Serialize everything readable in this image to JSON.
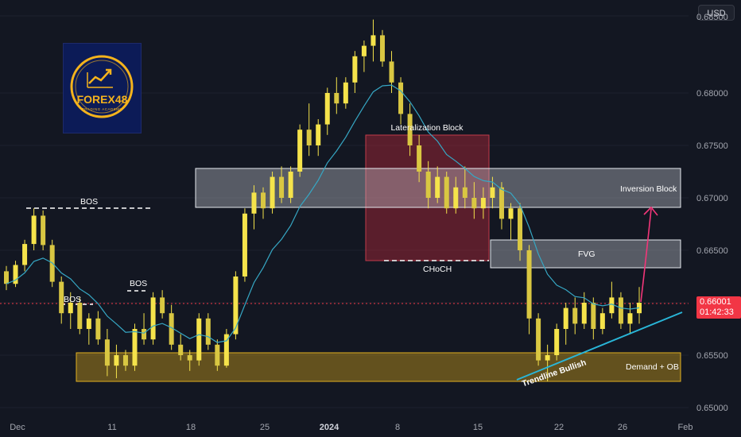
{
  "currency": "USD",
  "logo": {
    "title": "FOREX48",
    "subtitle": "TRADING ACADEMY"
  },
  "last_price": "0.66001",
  "countdown": "01:42:33",
  "colors": {
    "up": "#f5e34b",
    "down": "#f5e34b",
    "ma": "#36a7c4",
    "lateralization_block": "#b2283a",
    "grey_zone": "#d8dbe3",
    "demand_zone": "#c59a1a",
    "trendline": "#29b6d8",
    "projection": "#f23679"
  },
  "price_scale": {
    "labels": [
      "0.68500",
      "0.68000",
      "0.67500",
      "0.67000",
      "0.66500",
      "0.66000",
      "0.65500",
      "0.65000"
    ]
  },
  "date_axis": {
    "labels": [
      "Dec",
      "11",
      "18",
      "25",
      "2024",
      "8",
      "15",
      "22",
      "26",
      "Feb"
    ]
  },
  "annotations": {
    "bos1": "BOS",
    "bos2": "BOS",
    "bos3": "BOS",
    "lateralization": "Lateralization Block",
    "inversion": "Inversion Block",
    "fvg": "FVG",
    "choch": "CHoCH",
    "demand": "Demand + OB",
    "trendline": "Trendline Bullish"
  },
  "chart_data": {
    "type": "candlestick",
    "instrument_quote": "USD",
    "ylim": [
      0.65,
      0.687
    ],
    "candles_ohlc": [
      [
        0.663,
        0.6635,
        0.6612,
        0.6618
      ],
      [
        0.6618,
        0.664,
        0.6615,
        0.6636
      ],
      [
        0.6636,
        0.666,
        0.663,
        0.6656
      ],
      [
        0.6656,
        0.669,
        0.665,
        0.6683
      ],
      [
        0.6683,
        0.6688,
        0.665,
        0.6655
      ],
      [
        0.6655,
        0.666,
        0.6615,
        0.662
      ],
      [
        0.662,
        0.6625,
        0.658,
        0.659
      ],
      [
        0.659,
        0.661,
        0.6575,
        0.66
      ],
      [
        0.66,
        0.6605,
        0.657,
        0.6575
      ],
      [
        0.6575,
        0.659,
        0.656,
        0.6585
      ],
      [
        0.6585,
        0.6592,
        0.656,
        0.6565
      ],
      [
        0.6565,
        0.6575,
        0.653,
        0.654
      ],
      [
        0.654,
        0.656,
        0.6528,
        0.655
      ],
      [
        0.655,
        0.6555,
        0.6535,
        0.654
      ],
      [
        0.654,
        0.658,
        0.6535,
        0.6575
      ],
      [
        0.6575,
        0.659,
        0.656,
        0.6565
      ],
      [
        0.6565,
        0.661,
        0.656,
        0.6605
      ],
      [
        0.6605,
        0.6612,
        0.6585,
        0.659
      ],
      [
        0.659,
        0.6598,
        0.6555,
        0.656
      ],
      [
        0.656,
        0.657,
        0.6545,
        0.655
      ],
      [
        0.655,
        0.6555,
        0.6535,
        0.6545
      ],
      [
        0.6545,
        0.659,
        0.654,
        0.6585
      ],
      [
        0.6585,
        0.659,
        0.6555,
        0.656
      ],
      [
        0.656,
        0.6565,
        0.6535,
        0.654
      ],
      [
        0.654,
        0.6575,
        0.6538,
        0.657
      ],
      [
        0.657,
        0.663,
        0.6565,
        0.6625
      ],
      [
        0.6625,
        0.669,
        0.662,
        0.6685
      ],
      [
        0.6685,
        0.6712,
        0.667,
        0.6705
      ],
      [
        0.6705,
        0.671,
        0.668,
        0.669
      ],
      [
        0.669,
        0.6725,
        0.6685,
        0.672
      ],
      [
        0.672,
        0.673,
        0.6695,
        0.67
      ],
      [
        0.67,
        0.673,
        0.6695,
        0.6725
      ],
      [
        0.6725,
        0.677,
        0.672,
        0.6765
      ],
      [
        0.6765,
        0.679,
        0.674,
        0.675
      ],
      [
        0.675,
        0.6775,
        0.674,
        0.677
      ],
      [
        0.677,
        0.6805,
        0.676,
        0.68
      ],
      [
        0.68,
        0.6815,
        0.678,
        0.679
      ],
      [
        0.679,
        0.6815,
        0.6785,
        0.681
      ],
      [
        0.681,
        0.684,
        0.68,
        0.6835
      ],
      [
        0.6835,
        0.685,
        0.682,
        0.6845
      ],
      [
        0.6845,
        0.687,
        0.683,
        0.6855
      ],
      [
        0.6855,
        0.686,
        0.6825,
        0.683
      ],
      [
        0.683,
        0.684,
        0.68,
        0.681
      ],
      [
        0.681,
        0.6815,
        0.677,
        0.678
      ],
      [
        0.678,
        0.679,
        0.674,
        0.675
      ],
      [
        0.675,
        0.676,
        0.6715,
        0.6725
      ],
      [
        0.6725,
        0.6735,
        0.669,
        0.67
      ],
      [
        0.67,
        0.673,
        0.6695,
        0.672
      ],
      [
        0.672,
        0.6725,
        0.6685,
        0.669
      ],
      [
        0.669,
        0.672,
        0.6685,
        0.671
      ],
      [
        0.671,
        0.673,
        0.669,
        0.67
      ],
      [
        0.67,
        0.6715,
        0.668,
        0.669
      ],
      [
        0.669,
        0.671,
        0.668,
        0.67
      ],
      [
        0.67,
        0.672,
        0.669,
        0.671
      ],
      [
        0.671,
        0.6715,
        0.667,
        0.668
      ],
      [
        0.668,
        0.6695,
        0.666,
        0.669
      ],
      [
        0.669,
        0.6695,
        0.664,
        0.665
      ],
      [
        0.665,
        0.6655,
        0.657,
        0.6585
      ],
      [
        0.6585,
        0.659,
        0.654,
        0.6545
      ],
      [
        0.6545,
        0.656,
        0.6525,
        0.655
      ],
      [
        0.655,
        0.658,
        0.6545,
        0.6575
      ],
      [
        0.6575,
        0.66,
        0.656,
        0.6595
      ],
      [
        0.6595,
        0.6605,
        0.657,
        0.658
      ],
      [
        0.658,
        0.661,
        0.6575,
        0.66
      ],
      [
        0.66,
        0.6605,
        0.6565,
        0.6575
      ],
      [
        0.6575,
        0.6595,
        0.657,
        0.659
      ],
      [
        0.659,
        0.662,
        0.6585,
        0.6605
      ],
      [
        0.6605,
        0.661,
        0.6575,
        0.658
      ],
      [
        0.658,
        0.66,
        0.657,
        0.659
      ],
      [
        0.659,
        0.6615,
        0.658,
        0.66
      ]
    ],
    "moving_average": "single line following price",
    "zones": [
      {
        "name": "Lateralization Block",
        "from": 0.6641,
        "to": 0.6761
      },
      {
        "name": "Inversion Block",
        "from": 0.6691,
        "to": 0.6727
      },
      {
        "name": "FVG",
        "from": 0.6637,
        "to": 0.666
      },
      {
        "name": "Demand + OB",
        "from": 0.6527,
        "to": 0.6554
      }
    ],
    "levels": [
      {
        "name": "BOS",
        "price": 0.6691
      },
      {
        "name": "BOS",
        "price": 0.6608
      },
      {
        "name": "BOS",
        "price": 0.6626
      },
      {
        "name": "CHoCH",
        "price": 0.6641
      },
      {
        "name": "last price",
        "price": 0.66001
      }
    ],
    "trendline": {
      "name": "Trendline Bullish",
      "from": 0.6528,
      "to": 0.6596
    },
    "projection": {
      "from": 0.6601,
      "to": 0.669
    }
  }
}
